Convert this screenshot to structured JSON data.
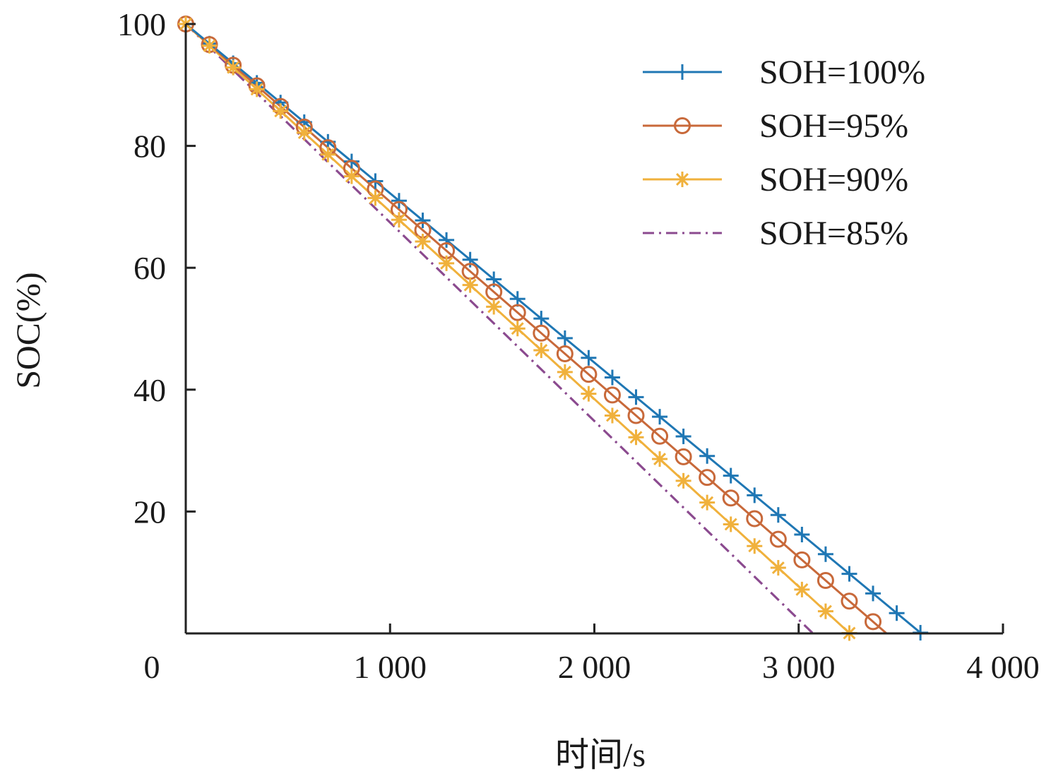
{
  "chart_data": {
    "type": "line",
    "xlabel": "时间/s",
    "ylabel": "SOC(%)",
    "xlim": [
      0,
      4000
    ],
    "ylim": [
      0,
      100
    ],
    "x_ticks": [
      0,
      1000,
      2000,
      3000,
      4000
    ],
    "x_tick_labels": [
      "0",
      "1 000",
      "2 000",
      "3 000",
      "4 000"
    ],
    "y_ticks": [
      20,
      40,
      60,
      80,
      100
    ],
    "y_tick_labels": [
      "20",
      "40",
      "60",
      "80",
      "100"
    ],
    "grid": false,
    "legend_position": "top-right",
    "series": [
      {
        "name": "SOH=100%",
        "color": "#1f77b4",
        "marker": "plus",
        "dash": "solid",
        "x_end": 3600,
        "marker_step": 116
      },
      {
        "name": "SOH=95%",
        "color": "#c8693a",
        "marker": "circle",
        "dash": "solid",
        "x_end": 3430,
        "marker_step": 116
      },
      {
        "name": "SOH=90%",
        "color": "#f0b13c",
        "marker": "asterisk",
        "dash": "solid",
        "x_end": 3250,
        "marker_step": 116
      },
      {
        "name": "SOH=85%",
        "color": "#8b4a8f",
        "marker": "none",
        "dash": "dashdot",
        "x_end": 3070,
        "marker_step": 0
      }
    ]
  }
}
